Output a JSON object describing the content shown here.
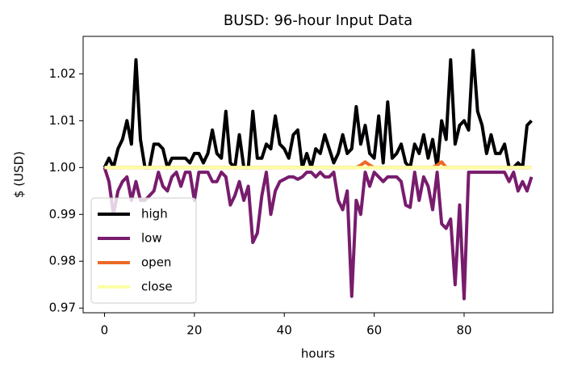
{
  "chart_data": {
    "type": "line",
    "title": "BUSD: 96-hour Input Data",
    "xlabel": "hours",
    "ylabel": "$ (USD)",
    "x": [
      0,
      1,
      2,
      3,
      4,
      5,
      6,
      7,
      8,
      9,
      10,
      11,
      12,
      13,
      14,
      15,
      16,
      17,
      18,
      19,
      20,
      21,
      22,
      23,
      24,
      25,
      26,
      27,
      28,
      29,
      30,
      31,
      32,
      33,
      34,
      35,
      36,
      37,
      38,
      39,
      40,
      41,
      42,
      43,
      44,
      45,
      46,
      47,
      48,
      49,
      50,
      51,
      52,
      53,
      54,
      55,
      56,
      57,
      58,
      59,
      60,
      61,
      62,
      63,
      64,
      65,
      66,
      67,
      68,
      69,
      70,
      71,
      72,
      73,
      74,
      75,
      76,
      77,
      78,
      79,
      80,
      81,
      82,
      83,
      84,
      85,
      86,
      87,
      88,
      89,
      90,
      91,
      92,
      93,
      94,
      95
    ],
    "series": [
      {
        "name": "high",
        "color": "#000004",
        "values": [
          1.0,
          1.002,
          1.0,
          1.004,
          1.006,
          1.01,
          1.005,
          1.023,
          1.006,
          1.0,
          1.0,
          1.005,
          1.005,
          1.004,
          1.0,
          1.002,
          1.002,
          1.002,
          1.002,
          1.001,
          1.003,
          1.003,
          1.001,
          1.003,
          1.008,
          1.003,
          1.002,
          1.012,
          1.001,
          1.0,
          1.007,
          1.0,
          1.0,
          1.012,
          1.002,
          1.002,
          1.005,
          1.004,
          1.011,
          1.005,
          1.004,
          1.002,
          1.007,
          1.008,
          1.0,
          1.003,
          1.0,
          1.004,
          1.003,
          1.007,
          1.004,
          1.001,
          1.003,
          1.007,
          1.003,
          1.004,
          1.013,
          1.005,
          1.009,
          1.003,
          1.002,
          1.011,
          1.001,
          1.014,
          1.002,
          1.003,
          1.005,
          1.001,
          1.0,
          1.005,
          1.003,
          1.007,
          1.002,
          1.006,
          1.0,
          1.01,
          1.006,
          1.023,
          1.005,
          1.009,
          1.01,
          1.008,
          1.025,
          1.012,
          1.009,
          1.003,
          1.007,
          1.003,
          1.003,
          1.005,
          1.0,
          1.0,
          1.001,
          1.0,
          1.009,
          1.01
        ]
      },
      {
        "name": "low",
        "color": "#781c6d",
        "values": [
          1.0,
          0.997,
          0.99,
          0.995,
          0.997,
          0.998,
          0.993,
          0.997,
          0.993,
          0.993,
          0.994,
          0.995,
          0.999,
          0.996,
          0.995,
          0.998,
          0.999,
          0.996,
          0.999,
          0.999,
          0.993,
          0.999,
          0.999,
          0.999,
          0.997,
          0.997,
          0.999,
          0.998,
          0.992,
          0.994,
          0.997,
          0.993,
          0.996,
          0.984,
          0.986,
          0.994,
          0.999,
          0.99,
          0.995,
          0.997,
          0.9975,
          0.998,
          0.998,
          0.9975,
          0.998,
          0.999,
          0.999,
          0.998,
          0.999,
          0.998,
          0.998,
          0.999,
          0.993,
          0.991,
          0.995,
          0.9725,
          0.993,
          0.99,
          0.999,
          0.996,
          0.999,
          0.998,
          0.997,
          0.998,
          0.998,
          0.998,
          0.997,
          0.992,
          0.9915,
          0.999,
          0.993,
          0.998,
          0.996,
          0.991,
          0.999,
          0.988,
          0.987,
          0.989,
          0.975,
          0.992,
          0.972,
          0.999,
          0.999,
          0.999,
          0.999,
          0.999,
          0.999,
          0.999,
          0.999,
          0.999,
          0.997,
          0.999,
          0.995,
          0.997,
          0.995,
          0.998
        ]
      },
      {
        "name": "open",
        "color": "#ed6925",
        "values": [
          1.0,
          1.0,
          1.0,
          1.0,
          1.0,
          1.0,
          1.0,
          1.0,
          1.0,
          1.0,
          1.0,
          1.0,
          1.0,
          1.0,
          1.0,
          1.0,
          1.0,
          1.0,
          1.0,
          1.0,
          1.0,
          1.0,
          1.0,
          1.0,
          1.0,
          1.0,
          1.0,
          1.0,
          1.0,
          1.0,
          1.0,
          1.0,
          1.0,
          1.0,
          1.0,
          1.0,
          1.0,
          1.0,
          1.0,
          1.0,
          1.0,
          1.0,
          1.0,
          1.0,
          1.0,
          1.0,
          1.0,
          1.0,
          1.0,
          1.0,
          1.0,
          1.0,
          1.0,
          1.0,
          1.0,
          1.0,
          1.0,
          1.0005,
          1.0012,
          1.0005,
          1.0,
          1.0,
          1.0,
          1.0,
          1.0,
          1.0,
          1.0,
          1.0,
          1.0,
          1.0,
          1.0,
          1.0,
          1.0,
          1.0,
          1.0005,
          1.0012,
          1.0,
          1.0,
          1.0,
          1.0,
          1.0,
          1.0,
          1.0,
          1.0,
          1.0,
          1.0,
          1.0,
          1.0,
          1.0,
          1.0,
          1.0,
          1.0,
          1.0,
          1.0,
          1.0,
          1.0
        ]
      },
      {
        "name": "close",
        "color": "#fcffa4",
        "values": [
          1.0,
          1.0,
          1.0,
          1.0,
          1.0,
          1.0,
          1.0,
          1.0,
          1.0,
          1.0,
          1.0,
          1.0,
          1.0,
          1.0,
          1.0,
          1.0,
          1.0,
          1.0,
          1.0,
          1.0,
          1.0,
          1.0,
          1.0,
          1.0,
          1.0,
          1.0,
          1.0,
          1.0,
          1.0,
          1.0,
          1.0,
          1.0,
          1.0,
          1.0,
          1.0,
          1.0,
          1.0,
          1.0,
          1.0,
          1.0,
          1.0,
          1.0,
          1.0,
          1.0,
          1.0,
          1.0,
          1.0,
          1.0,
          1.0,
          1.0,
          1.0,
          1.0,
          1.0,
          1.0,
          1.0,
          1.0,
          1.0,
          1.0,
          1.0,
          1.0,
          1.0,
          1.0,
          1.0,
          1.0,
          1.0,
          1.0,
          1.0,
          1.0,
          1.0,
          1.0,
          1.0,
          1.0,
          1.0,
          1.0,
          1.0,
          1.0,
          1.0,
          1.0,
          1.0,
          1.0,
          1.0,
          1.0,
          1.0,
          1.0,
          1.0,
          1.0,
          1.0,
          1.0,
          1.0,
          1.0,
          1.0,
          1.0,
          1.0,
          1.0,
          1.0,
          1.0
        ]
      }
    ],
    "xlim": [
      -4.75,
      99.75
    ],
    "ylim": [
      0.969,
      1.028
    ],
    "xticks": [
      0,
      20,
      40,
      60,
      80
    ],
    "yticks": [
      0.97,
      0.98,
      0.99,
      {
        "value": 1.0,
        "label": "1.00"
      },
      1.01,
      1.02
    ],
    "legend": "lower left",
    "grid": false
  }
}
